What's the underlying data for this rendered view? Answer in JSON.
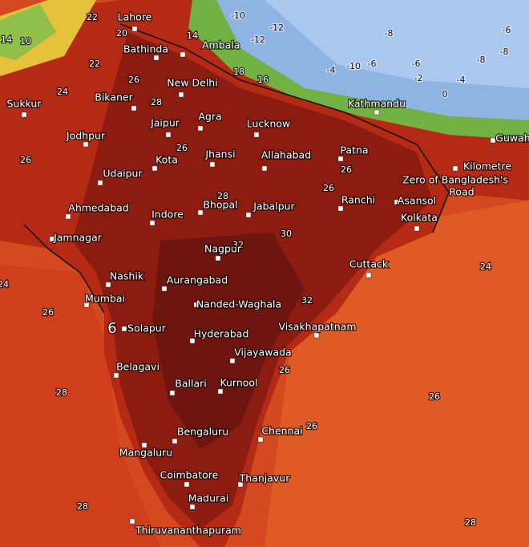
{
  "cities": [
    "Lahore",
    "Bathinda",
    "Ambala",
    "New Delhi",
    "Bikaner",
    "Sukkur",
    "Agra",
    "Lucknow",
    "Jaipur",
    "Jodhpur",
    "Kathmandu",
    "Patna",
    "Jhansi",
    "Allahabad",
    "Kota",
    "Udaipur",
    "Ranchi",
    "Asansol",
    "Bhopal",
    "Jabalpur",
    "Ahmedabad",
    "Kilometre",
    "Zero of Bangladesh's",
    "Road",
    "Kolkata",
    "Indore",
    "Jamnagar",
    "Nagpur",
    "Cuttack",
    "Nashik",
    "Aurangabad",
    "Mumbai",
    "Nanded-Waghala",
    "Solapur",
    "Hyderabad",
    "Visakhapatnam",
    "Vijayawada",
    "Belagavi",
    "Ballari",
    "Kurnool",
    "Bengaluru",
    "Chennai",
    "Mangaluru",
    "Coimbatore",
    "Thanjavur",
    "Madurai",
    "Thiruvananthapuram",
    "Guwah"
  ],
  "contour_labels": [
    "22",
    "20",
    "14",
    "10",
    "14",
    "22",
    "24",
    "18",
    "16",
    "26",
    "28",
    "26",
    "26",
    "28",
    "26",
    "26",
    "24",
    "26",
    "28",
    "26",
    "26",
    "28",
    "28",
    "30",
    "32",
    "32",
    "26",
    "24",
    "-12",
    "-10",
    "-4",
    "-10",
    "-6",
    "-8",
    "-6",
    "-2",
    "-8",
    "-6",
    "-12",
    "-8",
    "0",
    "-4",
    "6"
  ]
}
